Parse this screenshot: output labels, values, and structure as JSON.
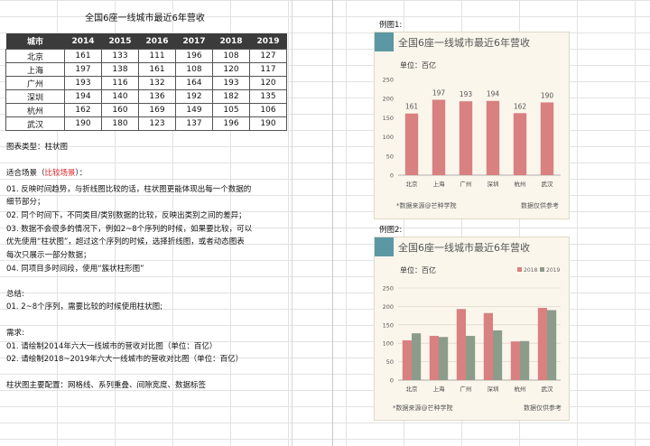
{
  "table": {
    "title": "全国6座一线城市最近6年营收",
    "headers": [
      "城市",
      "2014",
      "2015",
      "2016",
      "2017",
      "2018",
      "2019"
    ],
    "rows": [
      [
        "北京",
        "161",
        "133",
        "111",
        "196",
        "108",
        "127"
      ],
      [
        "上海",
        "197",
        "138",
        "161",
        "108",
        "120",
        "117"
      ],
      [
        "广州",
        "193",
        "116",
        "132",
        "164",
        "193",
        "120"
      ],
      [
        "深圳",
        "194",
        "140",
        "136",
        "192",
        "182",
        "135"
      ],
      [
        "杭州",
        "162",
        "160",
        "169",
        "149",
        "105",
        "106"
      ],
      [
        "武汉",
        "190",
        "180",
        "123",
        "137",
        "196",
        "190"
      ]
    ]
  },
  "notes": {
    "chart_type": "图表类型：柱状图",
    "scene_prefix": "适合场景（",
    "scene_highlight": "比较场景",
    "scene_suffix": "）：",
    "line1": "01. 反映时间趋势，与折线图比较的话，柱状图更能体现出每一个数据的",
    "line1b": "细节部分；",
    "line2": "02. 同个时间下，不同类目/类别数据的比较，反映出类别之间的差异；",
    "line3": "03. 数据不会很多的情况下，例如2~8个序列的时候，如果要比较，可以",
    "line3b": "优先使用“柱状图”，超过这个序列的时候，选择折线图，或者动态图表",
    "line3c": "每次只展示一部分数据；",
    "line4": "04. 同项目多时间段，使用“簇状柱形图”",
    "summary_title": "总结:",
    "summary_line": "01. 2~8个序列，需要比较的时候使用柱状图;",
    "req_title": "需求:",
    "req1": "01. 请绘制2014年六大一线城市的营收对比图（单位：百亿）",
    "req2": "02. 请绘制2018~2019年六大一线城市的营收对比图（单位：百亿）",
    "config": "柱状图主要配置：网格线、系列重叠、间隙宽度、数据标签"
  },
  "example1": {
    "label": "例图1:",
    "title": "全国6座一线城市最近6年营收",
    "unit": "单位：百亿",
    "source": "*数据来源@芒种学院",
    "disclaimer": "数据仅供参考"
  },
  "example2": {
    "label": "例图2:",
    "title": "全国6座一线城市最近6年营收",
    "unit": "单位：百亿",
    "source": "*数据来源@芒种学院",
    "disclaimer": "数据仅供参考"
  },
  "colors": {
    "bar_2014": "#d98080",
    "bar_2018": "#d98080",
    "bar_2019": "#8c9c8a",
    "accent": "#5b98a3"
  },
  "chart_data": [
    {
      "type": "bar",
      "categories": [
        "北京",
        "上海",
        "广州",
        "深圳",
        "杭州",
        "武汉"
      ],
      "values": [
        161,
        197,
        193,
        194,
        162,
        190
      ],
      "title": "全国6座一线城市最近6年营收",
      "ylim": [
        0,
        250
      ],
      "yticks": [
        0,
        50,
        100,
        150,
        200,
        250
      ],
      "data_labels": true,
      "grid": false
    },
    {
      "type": "bar",
      "categories": [
        "北京",
        "上海",
        "广州",
        "深圳",
        "杭州",
        "武汉"
      ],
      "series": [
        {
          "name": "2018",
          "values": [
            108,
            120,
            193,
            182,
            105,
            196
          ]
        },
        {
          "name": "2019",
          "values": [
            127,
            117,
            120,
            135,
            106,
            190
          ]
        }
      ],
      "title": "全国6座一线城市最近6年营收",
      "ylim": [
        0,
        250
      ],
      "yticks": [
        0,
        50,
        100,
        150,
        200,
        250
      ],
      "legend": "top-right",
      "grid": true
    }
  ]
}
